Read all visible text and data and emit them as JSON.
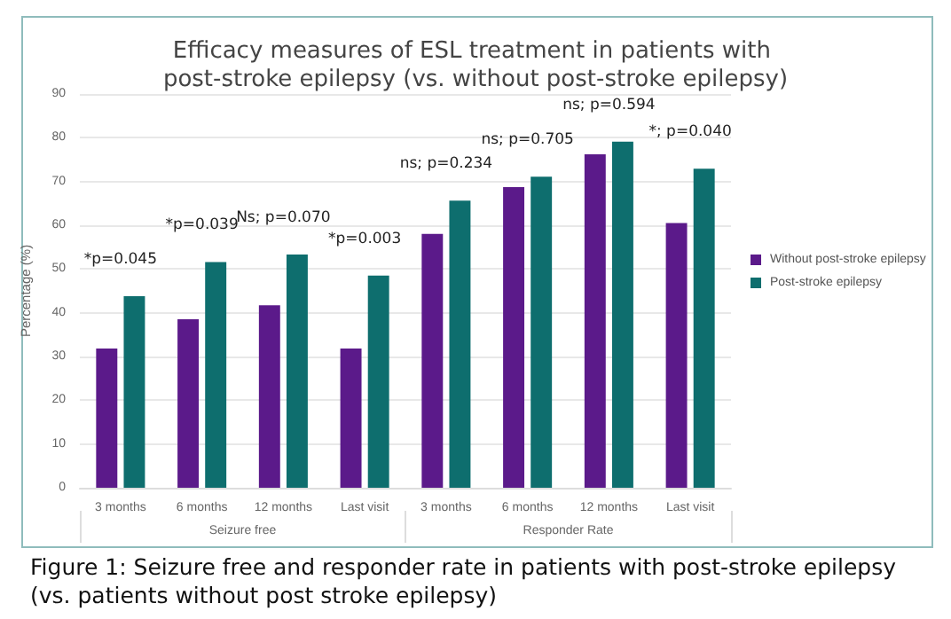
{
  "chart_data": {
    "type": "bar",
    "title": "Efficacy measures of ESL treatment in patients with post-stroke epilepsy (vs. without post-stroke epilepsy)",
    "ylabel": "Percentage (%)",
    "categories": [
      "3 months",
      "6 months",
      "12 months",
      "Last visit",
      "3 months",
      "6 months",
      "12 months",
      "Last visit"
    ],
    "series": [
      {
        "name": "Without post-stroke epilepsy",
        "color": "#5b1a8a",
        "values": [
          31.8,
          38.5,
          41.7,
          31.8,
          58,
          68.7,
          76.2,
          60.5
        ]
      },
      {
        "name": "Post-stroke epilepsy",
        "color": "#0e6e6e",
        "values": [
          43.8,
          51.6,
          53.3,
          48.5,
          65.6,
          71.1,
          79.1,
          72.9
        ]
      }
    ],
    "annotations": [
      "*p=0.045",
      "*p=0.039",
      "Ns; p=0.070",
      "*p=0.003",
      "ns; p=0.234",
      "ns; p=0.705",
      "ns; p=0.594",
      "*; p=0.040",
      "Seizure free",
      "Responder Rate",
      "Figure 1: Seizure free and responder rate in patients with post-stroke epilepsy (vs. patients without post stroke epilepsy)"
    ],
    "ylim": [
      0,
      90
    ],
    "yticks": [
      0,
      10,
      20,
      30,
      40,
      50,
      60,
      70,
      80,
      90
    ],
    "grid": "y",
    "legend": "right"
  }
}
